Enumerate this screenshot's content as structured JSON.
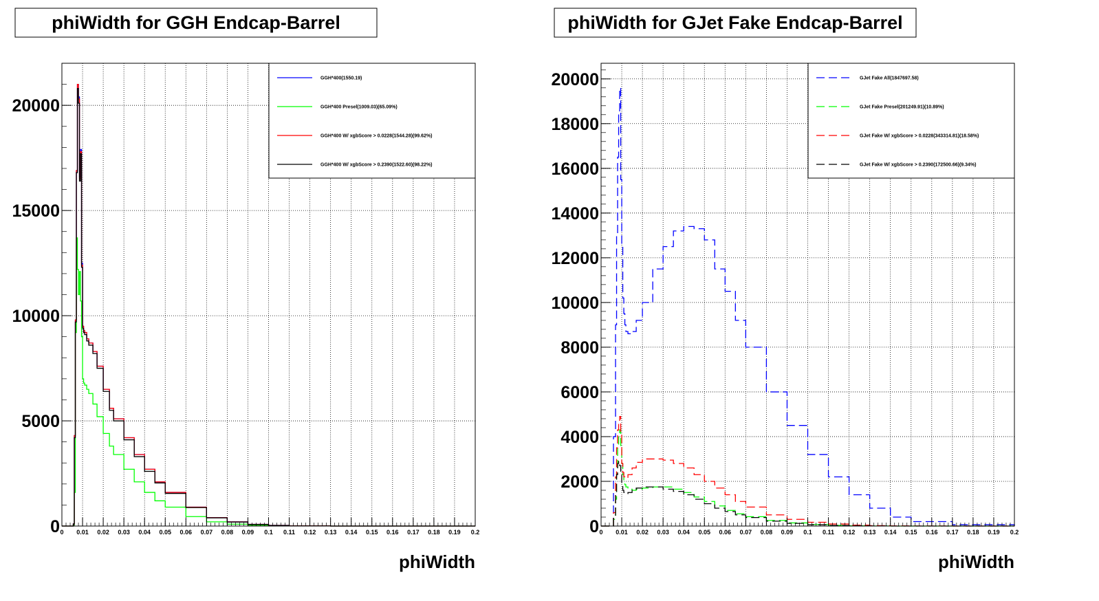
{
  "colors": {
    "blue": "#0000ff",
    "green": "#00ff00",
    "red": "#ff0000",
    "black": "#000000"
  },
  "chart_data": [
    {
      "type": "line",
      "title": "phiWidth for GGH Endcap-Barrel",
      "xlabel": "phiWidth",
      "ylabel": "",
      "xlim": [
        0,
        0.2
      ],
      "ylim": [
        0,
        22000
      ],
      "grid": true,
      "legend_position": "top-right",
      "x_ticks": [
        "0",
        "0.01",
        "0.02",
        "0.03",
        "0.04",
        "0.05",
        "0.06",
        "0.07",
        "0.08",
        "0.09",
        "0.1",
        "0.11",
        "0.12",
        "0.13",
        "0.14",
        "0.15",
        "0.16",
        "0.17",
        "0.18",
        "0.19",
        "0.2"
      ],
      "y_ticks": [
        "0",
        "5000",
        "10000",
        "15000",
        "20000"
      ],
      "x": [
        0,
        0.004,
        0.005,
        0.0055,
        0.006,
        0.0065,
        0.007,
        0.0075,
        0.008,
        0.0085,
        0.009,
        0.0095,
        0.01,
        0.0105,
        0.011,
        0.012,
        0.013,
        0.015,
        0.017,
        0.02,
        0.023,
        0.025,
        0.03,
        0.035,
        0.04,
        0.045,
        0.05,
        0.06,
        0.07,
        0.08,
        0.09,
        0.1,
        0.11,
        0.13,
        0.2
      ],
      "series": [
        {
          "name": "GGH*400(1550.19)",
          "color": "blue",
          "dash": false,
          "values": [
            0,
            0,
            0,
            100,
            4300,
            9800,
            16900,
            21000,
            20400,
            16600,
            17900,
            12500,
            9500,
            9300,
            9200,
            8900,
            8700,
            8300,
            7600,
            6500,
            5600,
            5100,
            4200,
            3400,
            2700,
            2100,
            1600,
            900,
            400,
            200,
            80,
            30,
            10,
            0,
            0
          ]
        },
        {
          "name": "GGH*400 Presel(1009.03)(65.09%)",
          "color": "green",
          "dash": false,
          "values": [
            0,
            0,
            0,
            50,
            1600,
            9200,
            13700,
            12200,
            11000,
            12100,
            10700,
            9000,
            7000,
            6800,
            6700,
            6500,
            6300,
            5800,
            5200,
            4400,
            3800,
            3400,
            2700,
            2100,
            1600,
            1200,
            900,
            450,
            200,
            90,
            40,
            10,
            5,
            0,
            0
          ]
        },
        {
          "name": "GGH*400 W/ xgbScore > 0.0228(1544.28)(99.62%)",
          "color": "red",
          "dash": false,
          "values": [
            0,
            0,
            0,
            100,
            4300,
            9800,
            16900,
            21000,
            20300,
            16500,
            17800,
            12400,
            9500,
            9300,
            9200,
            8900,
            8700,
            8300,
            7600,
            6500,
            5600,
            5100,
            4200,
            3400,
            2700,
            2100,
            1600,
            900,
            400,
            200,
            80,
            30,
            10,
            0,
            0
          ]
        },
        {
          "name": "GGH*400 W/ xgbScore > 0.2390(1522.60)(98.22%)",
          "color": "black",
          "dash": false,
          "values": [
            0,
            0,
            0,
            100,
            4200,
            9700,
            16800,
            20800,
            20100,
            16400,
            17700,
            12300,
            9400,
            9200,
            9100,
            8800,
            8600,
            8200,
            7500,
            6400,
            5500,
            5000,
            4100,
            3300,
            2600,
            2050,
            1550,
            880,
            390,
            190,
            75,
            28,
            9,
            0,
            0
          ]
        }
      ]
    },
    {
      "type": "line",
      "title": "phiWidth for GJet Fake Endcap-Barrel",
      "xlabel": "phiWidth",
      "ylabel": "",
      "xlim": [
        0,
        0.2
      ],
      "ylim": [
        0,
        20700
      ],
      "grid": true,
      "legend_position": "top-right",
      "x_ticks": [
        "0",
        "0.01",
        "0.02",
        "0.03",
        "0.04",
        "0.05",
        "0.06",
        "0.07",
        "0.08",
        "0.09",
        "0.1",
        "0.11",
        "0.12",
        "0.13",
        "0.14",
        "0.15",
        "0.16",
        "0.17",
        "0.18",
        "0.19",
        "0.2"
      ],
      "y_ticks": [
        "0",
        "2000",
        "4000",
        "6000",
        "8000",
        "10000",
        "12000",
        "14000",
        "16000",
        "18000",
        "20000"
      ],
      "x": [
        0,
        0.004,
        0.005,
        0.006,
        0.007,
        0.0075,
        0.008,
        0.0085,
        0.009,
        0.0095,
        0.01,
        0.0105,
        0.011,
        0.0115,
        0.012,
        0.013,
        0.015,
        0.017,
        0.02,
        0.025,
        0.03,
        0.035,
        0.04,
        0.045,
        0.05,
        0.055,
        0.06,
        0.065,
        0.07,
        0.08,
        0.09,
        0.1,
        0.11,
        0.12,
        0.13,
        0.14,
        0.15,
        0.17,
        0.2
      ],
      "series": [
        {
          "name": "GJet Fake All(1847697.58)",
          "color": "blue",
          "dash": true,
          "values": [
            0,
            0,
            0,
            4000,
            9000,
            13000,
            16500,
            18500,
            19600,
            15500,
            12500,
            10200,
            9500,
            9000,
            8700,
            8600,
            8700,
            9200,
            10000,
            11500,
            12500,
            13200,
            13400,
            13300,
            12800,
            11500,
            10500,
            9200,
            8000,
            6000,
            4500,
            3200,
            2200,
            1400,
            800,
            400,
            200,
            60,
            0
          ]
        },
        {
          "name": "GJet Fake Presel(201249.91)(10.89%)",
          "color": "green",
          "dash": true,
          "values": [
            0,
            0,
            0,
            300,
            1200,
            2500,
            3600,
            4100,
            4300,
            3600,
            2800,
            2300,
            2000,
            1850,
            1750,
            1650,
            1600,
            1650,
            1700,
            1750,
            1750,
            1650,
            1500,
            1300,
            1100,
            900,
            700,
            550,
            420,
            250,
            140,
            70,
            30,
            10,
            5,
            0,
            0,
            0,
            0
          ]
        },
        {
          "name": "GJet Fake W/ xgbScore > 0.0228(343314.81)(18.58%)",
          "color": "red",
          "dash": true,
          "values": [
            0,
            0,
            0,
            600,
            2200,
            3500,
            4300,
            4700,
            4900,
            4100,
            2800,
            2400,
            2200,
            2150,
            2150,
            2300,
            2600,
            2850,
            3000,
            3000,
            2950,
            2800,
            2600,
            2300,
            2000,
            1700,
            1400,
            1100,
            850,
            500,
            300,
            170,
            90,
            40,
            20,
            8,
            3,
            0,
            0
          ]
        },
        {
          "name": "GJet Fake W/ xgbScore > 0.2390(172500.66)(9.34%)",
          "color": "black",
          "dash": true,
          "values": [
            0,
            0,
            0,
            400,
            1400,
            2300,
            2800,
            2900,
            2700,
            2300,
            1800,
            1600,
            1500,
            1450,
            1450,
            1500,
            1600,
            1700,
            1750,
            1750,
            1650,
            1550,
            1400,
            1200,
            1000,
            800,
            650,
            500,
            380,
            220,
            120,
            60,
            25,
            10,
            4,
            0,
            0,
            0,
            0
          ]
        }
      ]
    }
  ]
}
